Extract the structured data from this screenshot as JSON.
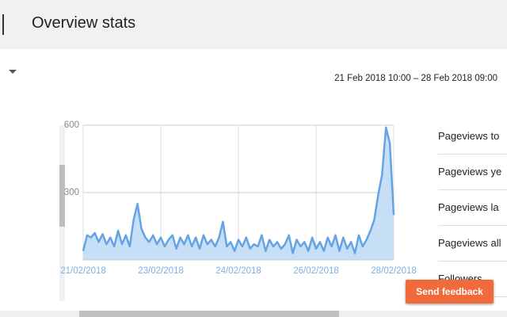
{
  "header": {
    "title": "Overview stats"
  },
  "date_range": "21 Feb 2018 10:00 – 28 Feb 2018 09:00",
  "chart_data": {
    "type": "area",
    "line_color": "#64a3e4",
    "fill_color": "#c6def6",
    "grid": true,
    "values": [
      40,
      110,
      100,
      120,
      80,
      115,
      70,
      100,
      60,
      130,
      70,
      110,
      60,
      180,
      250,
      140,
      100,
      80,
      110,
      70,
      100,
      60,
      90,
      110,
      50,
      100,
      70,
      110,
      60,
      100,
      50,
      110,
      70,
      90,
      60,
      100,
      170,
      60,
      80,
      40,
      90,
      60,
      100,
      50,
      70,
      60,
      110,
      40,
      90,
      60,
      80,
      50,
      70,
      110,
      30,
      90,
      60,
      80,
      40,
      100,
      50,
      80,
      40,
      100,
      60,
      110,
      40,
      100,
      50,
      80,
      30,
      110,
      60,
      90,
      130,
      180,
      290,
      380,
      590,
      520,
      200
    ],
    "xlim": [
      0,
      80
    ],
    "xticks": [
      {
        "value": 0,
        "label": "21/02/2018"
      },
      {
        "value": 20,
        "label": "23/02/2018"
      },
      {
        "value": 40,
        "label": "24/02/2018"
      },
      {
        "value": 60,
        "label": "26/02/2018"
      },
      {
        "value": 80,
        "label": "28/02/2018"
      }
    ],
    "ylim": [
      0,
      600
    ],
    "yticks": [
      300,
      600
    ]
  },
  "stats_list": [
    "Pageviews to",
    "Pageviews ye",
    "Pageviews la",
    "Pageviews all",
    "Followers"
  ],
  "feedback_button": "Send feedback"
}
